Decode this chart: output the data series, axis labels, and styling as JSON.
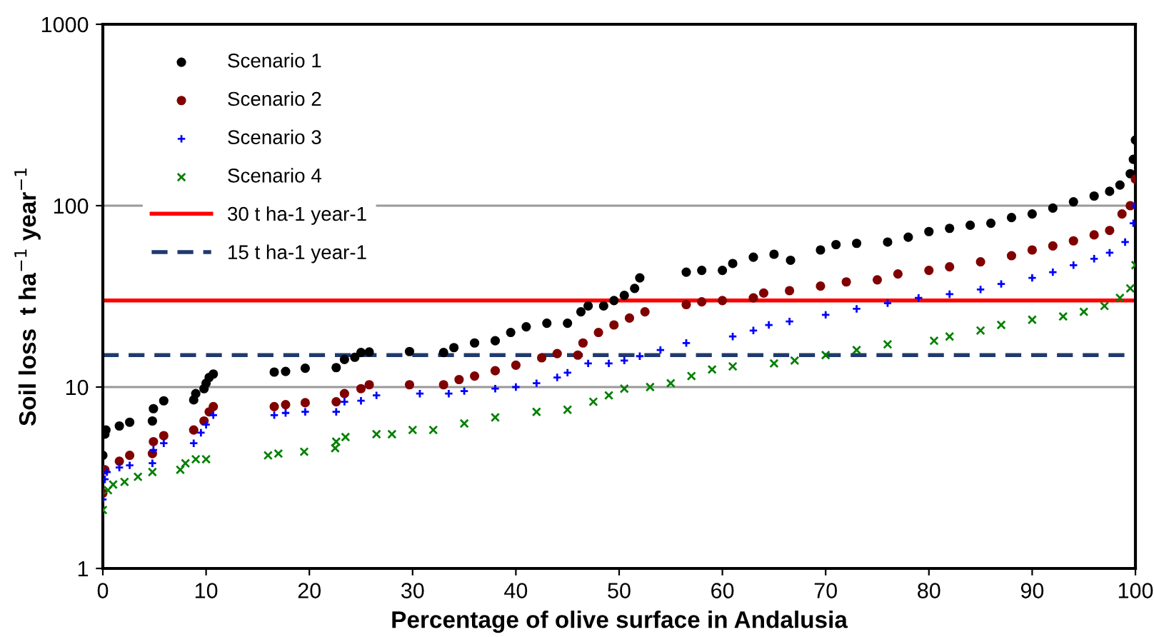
{
  "chart_data": {
    "type": "scatter",
    "xlabel": "Percentage of olive surface in Andalusia",
    "ylabel": "Soil loss  t ha$^{−1}$ year$^{−1}$",
    "log": "y",
    "grid": "y",
    "legend": "top left",
    "xlim": [
      0,
      100
    ],
    "xticks": [
      0,
      10,
      20,
      30,
      40,
      50,
      60,
      70,
      80,
      90,
      100
    ],
    "ylim": [
      1,
      1000
    ],
    "yticks": [
      1,
      10,
      100,
      1000
    ],
    "series": [
      {
        "name": "Scenario 1",
        "color": "#000000",
        "marker": "circle",
        "x": [
          0,
          0.2,
          0.3,
          1.6,
          2.6,
          4.8,
          4.9,
          5.9,
          8.8,
          9,
          9.8,
          10,
          10.3,
          10.7,
          16.6,
          17.7,
          19.6,
          22.6,
          23.4,
          24.4,
          25,
          25.8,
          29.7,
          33,
          34,
          36,
          38,
          39.5,
          41,
          43,
          45,
          46.3,
          47,
          48.5,
          49.5,
          50.5,
          51.5,
          52,
          56.5,
          58,
          60,
          61,
          63,
          65,
          66.6,
          69.5,
          71,
          73,
          76,
          78,
          80,
          82,
          84,
          86,
          88,
          90,
          92,
          94,
          96,
          97.5,
          98.5,
          99.5,
          99.8,
          100
        ],
        "values": [
          4.2,
          5.5,
          5.8,
          6.1,
          6.4,
          6.5,
          7.6,
          8.4,
          8.5,
          9.2,
          9.8,
          10.5,
          11.3,
          11.8,
          12.1,
          12.2,
          12.7,
          12.8,
          14.2,
          14.6,
          15.5,
          15.6,
          15.7,
          15.5,
          16.5,
          17.5,
          18,
          20,
          21.5,
          22.5,
          22.5,
          26,
          28,
          28,
          30,
          32,
          35,
          40,
          43,
          44,
          44,
          48,
          52,
          54,
          50,
          57,
          61,
          62,
          63,
          67,
          72,
          75,
          78,
          80,
          86,
          90,
          97,
          105,
          113,
          120,
          130,
          150,
          180,
          230
        ]
      },
      {
        "name": "Scenario 2",
        "color": "#800000",
        "marker": "circle",
        "x": [
          0,
          0.2,
          1.6,
          2.6,
          4.8,
          4.9,
          5.9,
          8.8,
          9.8,
          10.3,
          10.7,
          16.6,
          17.7,
          19.6,
          22.6,
          23.4,
          25,
          25.8,
          29.7,
          33,
          34.5,
          36,
          38,
          40,
          42.5,
          44,
          46,
          46.5,
          48,
          49.5,
          51,
          52.5,
          56.5,
          58,
          60,
          63,
          64,
          66.5,
          69.5,
          72,
          75,
          77,
          80,
          82,
          85,
          88,
          90,
          92,
          94,
          96,
          97.5,
          98.7,
          99.5,
          100
        ],
        "values": [
          2.6,
          3.5,
          3.9,
          4.2,
          4.3,
          5,
          5.4,
          5.8,
          6.5,
          7.3,
          7.8,
          7.8,
          8,
          8.2,
          8.3,
          9.2,
          9.8,
          10.3,
          10.3,
          10.3,
          11,
          11.5,
          12.3,
          13.2,
          14.5,
          15.3,
          15,
          17.5,
          20,
          22,
          24,
          26,
          28.5,
          29.5,
          30,
          31,
          33,
          34,
          36,
          38,
          39,
          42,
          44,
          46,
          49,
          53,
          57,
          60,
          64,
          69,
          73,
          90,
          100,
          140
        ]
      },
      {
        "name": "Scenario 3",
        "color": "#0000ff",
        "marker": "plus",
        "x": [
          0,
          0.2,
          0.4,
          1.6,
          2.6,
          4.8,
          4.9,
          5.9,
          8.8,
          9.5,
          10,
          10.7,
          16.6,
          17.7,
          19.6,
          22.6,
          23.4,
          25,
          26.5,
          30.7,
          33.5,
          35,
          38,
          40,
          42,
          44,
          45,
          47,
          49,
          50.5,
          52,
          54,
          56.5,
          61,
          63,
          64.5,
          66.5,
          70,
          73,
          76,
          79,
          82,
          85,
          87,
          90,
          92,
          94,
          96,
          97.5,
          99,
          99.8,
          100
        ],
        "values": [
          2.4,
          3.1,
          3.4,
          3.6,
          3.7,
          3.8,
          4.5,
          4.9,
          4.9,
          5.6,
          6.2,
          7,
          7,
          7.2,
          7.3,
          7.3,
          8.3,
          8.4,
          9,
          9.2,
          9.2,
          9.5,
          9.8,
          10,
          10.5,
          11.3,
          12,
          13.5,
          13.5,
          14,
          14.8,
          16,
          17.5,
          19,
          20.5,
          22,
          23,
          25,
          27,
          29,
          31,
          32.5,
          34.5,
          37,
          40,
          43,
          47,
          51,
          55,
          63,
          80,
          100
        ]
      },
      {
        "name": "Scenario 4",
        "color": "#008000",
        "marker": "cross",
        "x": [
          0,
          0.5,
          1,
          2.1,
          3.4,
          4.8,
          7.5,
          8,
          9,
          10,
          16,
          17,
          19.5,
          22.5,
          22.6,
          23.5,
          26.5,
          28,
          30,
          32,
          35,
          38,
          42,
          45,
          47.5,
          49,
          50.5,
          53,
          55,
          57,
          59,
          61,
          65,
          67,
          70,
          73,
          76,
          80.5,
          82,
          85,
          87,
          90,
          93,
          95,
          97,
          98.5,
          99.5,
          100
        ],
        "values": [
          2.1,
          2.7,
          2.9,
          3,
          3.2,
          3.4,
          3.5,
          3.8,
          4,
          4,
          4.2,
          4.3,
          4.4,
          4.6,
          5,
          5.3,
          5.5,
          5.5,
          5.8,
          5.8,
          6.3,
          6.8,
          7.3,
          7.5,
          8.3,
          9,
          9.8,
          10,
          10.5,
          11.5,
          12.5,
          13,
          13.5,
          14,
          15,
          16,
          17.2,
          18,
          19,
          20.5,
          22,
          23.5,
          24.5,
          26,
          28,
          31,
          35,
          47
        ]
      }
    ],
    "ref_lines": [
      {
        "axis": "y",
        "value": 30,
        "label": "30 t ha-1 year-1",
        "color": "#ff0000",
        "line_style": "solid"
      },
      {
        "axis": "y",
        "value": 15,
        "label": "15 t ha-1 year-1",
        "color": "#1f3a6e",
        "line_style": "dashed"
      }
    ]
  }
}
